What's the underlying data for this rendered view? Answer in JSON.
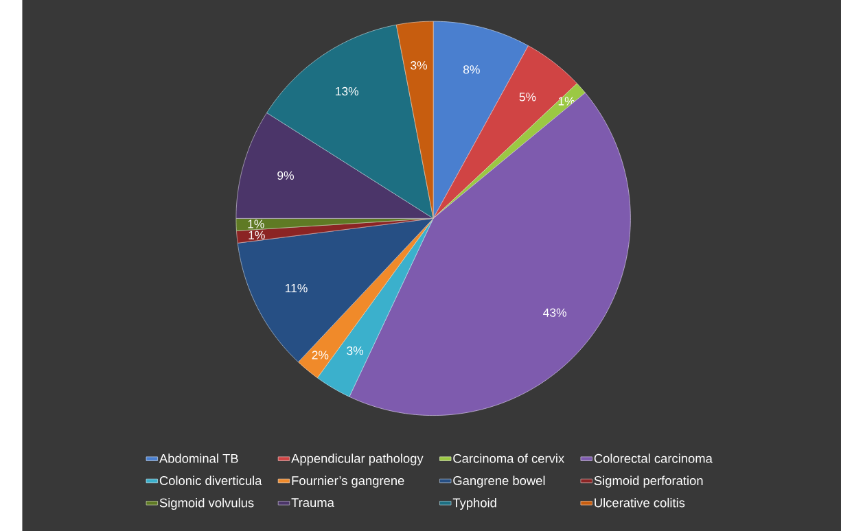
{
  "chart_data": {
    "type": "pie",
    "categories": [
      "Abdominal TB",
      "Appendicular pathology",
      "Carcinoma of cervix",
      "Colorectal carcinoma",
      "Colonic diverticula",
      "Fournier’s gangrene",
      "Gangrene bowel",
      "Sigmoid perforation",
      "Sigmoid volvulus",
      "Trauma",
      "Typhoid",
      "Ulcerative colitis"
    ],
    "values": [
      8,
      5,
      1,
      43,
      3,
      2,
      11,
      1,
      1,
      9,
      13,
      3
    ],
    "value_labels": [
      "8%",
      "5%",
      "1%",
      "43%",
      "3%",
      "2%",
      "11%",
      "1%",
      "1%",
      "9%",
      "13%",
      "3%"
    ],
    "colors": [
      "#4a7fcf",
      "#d04444",
      "#9bc843",
      "#7e5bae",
      "#3bb0cc",
      "#f08a2a",
      "#264f84",
      "#8b2424",
      "#5f7a24",
      "#4b3569",
      "#1d6f82",
      "#c75d0f"
    ],
    "legend": "bottom"
  }
}
